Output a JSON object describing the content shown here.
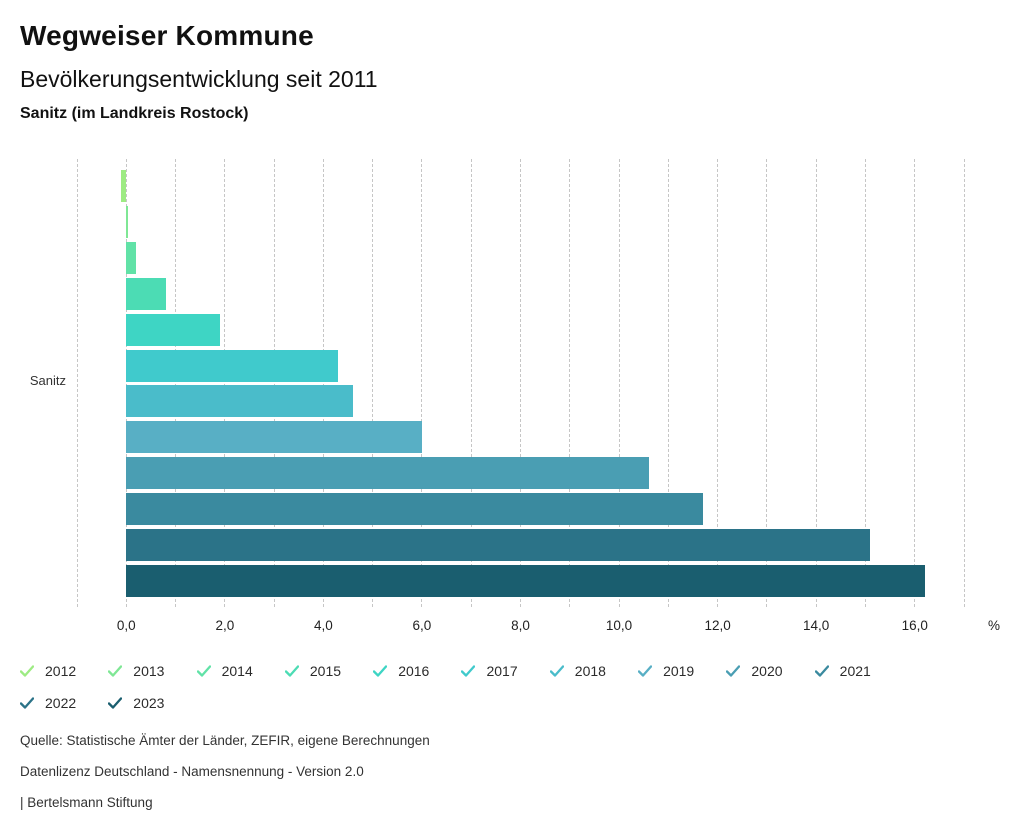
{
  "header": {
    "title": "Wegweiser Kommune",
    "subtitle": "Bevölkerungsentwicklung seit 2011",
    "region": "Sanitz (im Landkreis Rostock)"
  },
  "chart_data": {
    "type": "bar",
    "orientation": "horizontal",
    "title": "Bevölkerungsentwicklung seit 2011",
    "category_label": "Sanitz",
    "unit": "%",
    "xlim": [
      -1,
      17
    ],
    "gridline_step": 1,
    "grid": "dashed-vertical",
    "x_ticks": [
      {
        "v": 0,
        "label": "0,0"
      },
      {
        "v": 2,
        "label": "2,0"
      },
      {
        "v": 4,
        "label": "4,0"
      },
      {
        "v": 6,
        "label": "6,0"
      },
      {
        "v": 8,
        "label": "8,0"
      },
      {
        "v": 10,
        "label": "10,0"
      },
      {
        "v": 12,
        "label": "12,0"
      },
      {
        "v": 14,
        "label": "14,0"
      },
      {
        "v": 16,
        "label": "16,0"
      }
    ],
    "series": [
      {
        "name": "2012",
        "value": -0.1,
        "color": "#9DEB83"
      },
      {
        "name": "2013",
        "value": 0.0,
        "color": "#7FE795"
      },
      {
        "name": "2014",
        "value": 0.2,
        "color": "#61E2A7"
      },
      {
        "name": "2015",
        "value": 0.8,
        "color": "#4CDCB4"
      },
      {
        "name": "2016",
        "value": 1.9,
        "color": "#3ED5C4"
      },
      {
        "name": "2017",
        "value": 4.3,
        "color": "#40CACC"
      },
      {
        "name": "2018",
        "value": 4.6,
        "color": "#4ABCCA"
      },
      {
        "name": "2019",
        "value": 6.0,
        "color": "#58AFC5"
      },
      {
        "name": "2020",
        "value": 10.6,
        "color": "#4A9EB3"
      },
      {
        "name": "2021",
        "value": 11.7,
        "color": "#3A8A9F"
      },
      {
        "name": "2022",
        "value": 15.1,
        "color": "#2B7388"
      },
      {
        "name": "2023",
        "value": 16.2,
        "color": "#1A5E6F"
      }
    ],
    "legend_position": "bottom"
  },
  "footer": {
    "line1": "Quelle: Statistische Ämter der Länder, ZEFIR, eigene Berechnungen",
    "line2": "Datenlizenz Deutschland - Namensnennung - Version 2.0",
    "line3": "| Bertelsmann Stiftung"
  }
}
